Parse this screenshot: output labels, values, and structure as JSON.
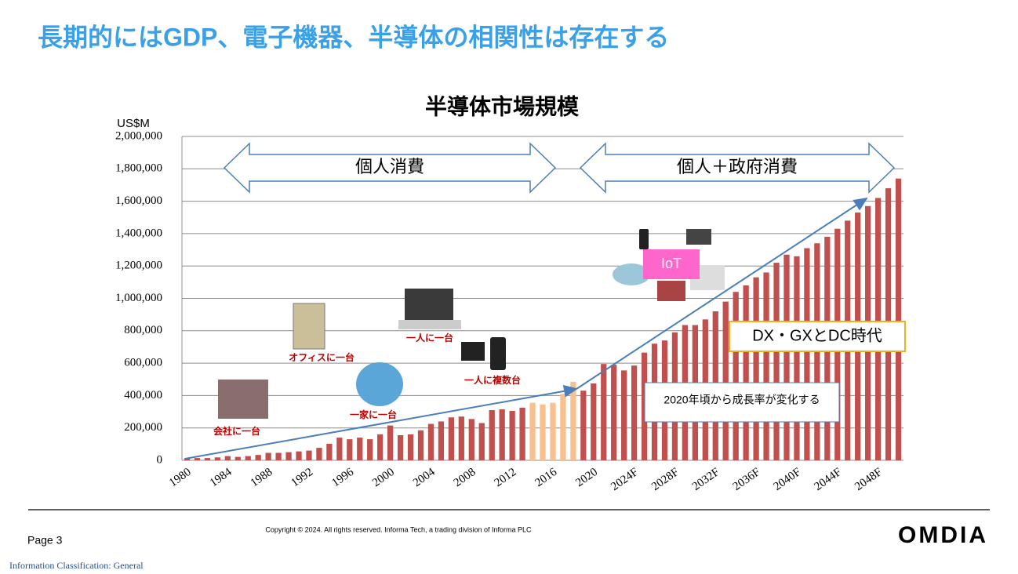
{
  "slide": {
    "title": "長期的にはGDP、電子機器、半導体の相関性は存在する",
    "footer": {
      "page": "Page 3",
      "copyright": "Copyright © 2024. All rights reserved. Informa Tech, a trading division of Informa PLC",
      "logo": "OMDIA",
      "classification": "Information Classification: General"
    }
  },
  "chart_data": {
    "type": "bar",
    "title": "半導体市場規模",
    "y_unit": "US$M",
    "categories": [
      "1980",
      null,
      null,
      null,
      "1984",
      null,
      null,
      null,
      "1988",
      null,
      null,
      null,
      "1992",
      null,
      null,
      null,
      "1996",
      null,
      null,
      null,
      "2000",
      null,
      null,
      null,
      "2004",
      null,
      null,
      null,
      "2008",
      null,
      null,
      null,
      "2012",
      null,
      null,
      null,
      "2016",
      null,
      null,
      null,
      "2020",
      null,
      null,
      null,
      "2024F",
      null,
      null,
      null,
      "2028F",
      null,
      null,
      null,
      "2032F",
      null,
      null,
      null,
      "2036F",
      null,
      null,
      null,
      "2040F",
      null,
      null,
      null,
      "2044F",
      null,
      null,
      null,
      "2048F",
      null,
      null
    ],
    "values": [
      13000,
      14000,
      14000,
      18000,
      26000,
      21000,
      26000,
      33000,
      46000,
      46000,
      50000,
      55000,
      60000,
      77000,
      102000,
      140000,
      130000,
      140000,
      130000,
      160000,
      215000,
      155000,
      160000,
      185000,
      225000,
      240000,
      265000,
      270000,
      255000,
      230000,
      310000,
      315000,
      305000,
      325000,
      355000,
      345000,
      355000,
      410000,
      485000,
      430000,
      475000,
      595000,
      590000,
      555000,
      585000,
      665000,
      720000,
      740000,
      790000,
      835000,
      835000,
      870000,
      920000,
      980000,
      1040000,
      1080000,
      1130000,
      1160000,
      1220000,
      1270000,
      1260000,
      1310000,
      1340000,
      1380000,
      1430000,
      1480000,
      1530000,
      1570000,
      1620000,
      1680000,
      1740000
    ],
    "colors": [
      "#c0504d",
      "#c0504d",
      "#c0504d",
      "#c0504d",
      "#c0504d",
      "#c0504d",
      "#c0504d",
      "#c0504d",
      "#c0504d",
      "#c0504d",
      "#c0504d",
      "#c0504d",
      "#c0504d",
      "#c0504d",
      "#c0504d",
      "#c0504d",
      "#c0504d",
      "#c0504d",
      "#c0504d",
      "#c0504d",
      "#c0504d",
      "#c0504d",
      "#c0504d",
      "#c0504d",
      "#c0504d",
      "#c0504d",
      "#c0504d",
      "#c0504d",
      "#c0504d",
      "#c0504d",
      "#c0504d",
      "#c0504d",
      "#c0504d",
      "#c0504d",
      "#f9c08f",
      "#f9c08f",
      "#f9c08f",
      "#f9c08f",
      "#f9c08f",
      "#c0504d",
      "#c0504d",
      "#c0504d",
      "#c0504d",
      "#c0504d",
      "#c0504d",
      "#c0504d",
      "#c0504d",
      "#c0504d",
      "#c0504d",
      "#c0504d",
      "#c0504d",
      "#c0504d",
      "#c0504d",
      "#c0504d",
      "#c0504d",
      "#c0504d",
      "#c0504d",
      "#c0504d",
      "#c0504d",
      "#c0504d",
      "#c0504d",
      "#c0504d",
      "#c0504d",
      "#c0504d",
      "#c0504d",
      "#c0504d",
      "#c0504d",
      "#c0504d",
      "#c0504d",
      "#c0504d",
      "#c0504d"
    ],
    "ylim": [
      0,
      2000000
    ],
    "yticks": [
      0,
      {
        "value": 200000,
        "label": "200,000"
      },
      {
        "value": 400000,
        "label": "400,000"
      },
      {
        "value": 600000,
        "label": "600,000"
      },
      {
        "value": 800000,
        "label": "800,000"
      },
      {
        "value": 1000000,
        "label": "1,000,000"
      },
      {
        "value": 1200000,
        "label": "1,200,000"
      },
      {
        "value": 1400000,
        "label": "1,400,000"
      },
      {
        "value": 1600000,
        "label": "1,600,000"
      },
      {
        "value": 1800000,
        "label": "1,800,000"
      },
      {
        "value": 2000000,
        "label": "2,000,000"
      }
    ],
    "grid": true,
    "annotations": {
      "period_1": "個人消費",
      "period_2": "個人＋政府消費",
      "milestones": [
        "会社に一台",
        "オフィスに一台",
        "一家に一台",
        "一人に一台",
        "一人に複数台"
      ],
      "iot": "IoT",
      "era": "DX・GXとDC時代",
      "note": "2020年頃から成長率が変化する"
    }
  }
}
